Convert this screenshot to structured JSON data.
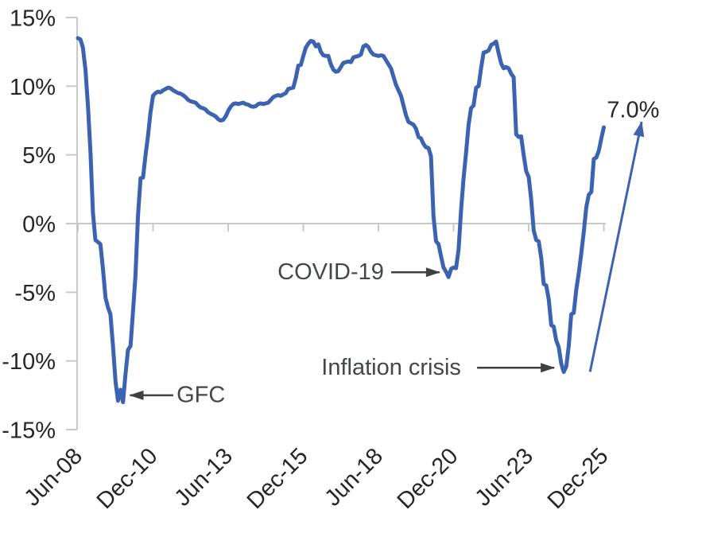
{
  "chart_data": {
    "type": "line",
    "title": "",
    "frequency": "monthly",
    "x_start_label": "Jun-08",
    "x_end_label": "Dec-25",
    "x_tick_labels": [
      "Jun-08",
      "Dec-10",
      "Jun-13",
      "Dec-15",
      "Jun-18",
      "Dec-20",
      "Jun-23",
      "Dec-25"
    ],
    "x_tick_months": [
      0,
      30,
      60,
      90,
      120,
      150,
      180,
      210
    ],
    "ylim": [
      -15,
      15
    ],
    "y_ticks": [
      {
        "v": 15,
        "label": "15%"
      },
      {
        "v": 10,
        "label": "10%"
      },
      {
        "v": 5,
        "label": "5%"
      },
      {
        "v": 0,
        "label": "0%"
      },
      {
        "v": -5,
        "label": "-5%"
      },
      {
        "v": -10,
        "label": "-10%"
      },
      {
        "v": -15,
        "label": "-15%"
      }
    ],
    "grid": "zero-line-only",
    "legend": "none",
    "final_value_pct": 7.0,
    "series": [
      {
        "name": "annual-growth-pct",
        "values": [
          13.5,
          13.4,
          12.8,
          11.2,
          8.6,
          5.2,
          0.8,
          -1.2,
          -1.35,
          -1.5,
          -3.3,
          -5.4,
          -6.1,
          -6.6,
          -8.9,
          -11.5,
          -12.9,
          -12.1,
          -13,
          -11,
          -9.2,
          -8.9,
          -6.4,
          -3.8,
          0.6,
          3.3,
          3.35,
          5,
          6.4,
          8.1,
          9.3,
          9.5,
          9.6,
          9.55,
          9.7,
          9.8,
          9.9,
          9.85,
          9.7,
          9.6,
          9.5,
          9.45,
          9.35,
          9.2,
          9,
          8.9,
          8.85,
          8.8,
          8.6,
          8.45,
          8.4,
          8.3,
          8.1,
          8,
          7.9,
          7.8,
          7.6,
          7.5,
          7.55,
          7.8,
          8.2,
          8.5,
          8.7,
          8.75,
          8.7,
          8.75,
          8.8,
          8.7,
          8.65,
          8.55,
          8.5,
          8.55,
          8.7,
          8.75,
          8.7,
          8.75,
          8.8,
          9,
          9.2,
          9.3,
          9.35,
          9.3,
          9.4,
          9.5,
          9.8,
          9.85,
          9.9,
          10.6,
          11.5,
          11.55,
          12.2,
          12.8,
          13.1,
          13.3,
          13.25,
          12.9,
          13.05,
          12.5,
          12.25,
          12.2,
          12.2,
          11.6,
          11.2,
          11.05,
          11.1,
          11.4,
          11.7,
          11.75,
          11.8,
          11.75,
          12.1,
          12.15,
          12.2,
          12.3,
          12.9,
          13,
          12.85,
          12.5,
          12.3,
          12.25,
          12.2,
          12.25,
          12.2,
          11.9,
          11.6,
          11.3,
          10.7,
          10.1,
          9.7,
          9.3,
          8.6,
          7.9,
          7.4,
          7.3,
          7.2,
          6.9,
          6.3,
          6.2,
          5.8,
          5.55,
          5.5,
          4.9,
          0.5,
          -1.3,
          -1.5,
          -2.4,
          -3.2,
          -3.5,
          -3.9,
          -3.3,
          -3.2,
          -3.25,
          -1.9,
          1,
          3.3,
          5.2,
          7.2,
          8.4,
          8.6,
          9.9,
          10,
          11.3,
          12.45,
          12.5,
          12.6,
          13,
          13.1,
          13.25,
          12.4,
          11.65,
          11.3,
          11.4,
          11.3,
          10.9,
          10.65,
          6.5,
          6.3,
          6.35,
          5,
          3.8,
          3.4,
          1.8,
          -0.5,
          -1.2,
          -1.3,
          -2.5,
          -4.4,
          -4.5,
          -5.5,
          -7.4,
          -7.5,
          -8.5,
          -9,
          -10.2,
          -10.8,
          -10.4,
          -8.9,
          -6.6,
          -6.5,
          -4.8,
          -3.6,
          -2.2,
          -0.6,
          1.2,
          2.1,
          2.3,
          4.7,
          4.8,
          5.3,
          6.2,
          7
        ]
      }
    ],
    "annotations": [
      {
        "id": "gfc",
        "label": "GFC",
        "anchor": "start",
        "m": 39.4,
        "v": -12.4,
        "arrow": {
          "m1": 38.1,
          "v1": -12.5,
          "m2": 20.8,
          "v2": -12.5
        }
      },
      {
        "id": "covid",
        "label": "COVID-19",
        "anchor": "end",
        "m": 122.2,
        "v": -3.45,
        "arrow": {
          "m1": 125.1,
          "v1": -3.55,
          "m2": 144.4,
          "v2": -3.55
        }
      },
      {
        "id": "inflation-crisis",
        "label": "Inflation crisis",
        "anchor": "end",
        "m": 153,
        "v": -10.4,
        "arrow": {
          "m1": 159.4,
          "v1": -10.5,
          "m2": 190.2,
          "v2": -10.5
        }
      },
      {
        "id": "final-value",
        "label": "7.0%",
        "anchor": "start",
        "m": 211.2,
        "v": 8.35,
        "style": "emphasis",
        "arrow": {
          "m1": 204.5,
          "v1": -10.8,
          "m2": 225.1,
          "v2": 7.4
        },
        "arrow_style": "trend"
      }
    ]
  },
  "colors": {
    "line": "#3B63B1",
    "axis": "#C9C9C9",
    "tick_label": "#262626",
    "annotation_text": "#43474B",
    "annotation_arrow": "#404040",
    "emphasis_text": "#262626"
  }
}
